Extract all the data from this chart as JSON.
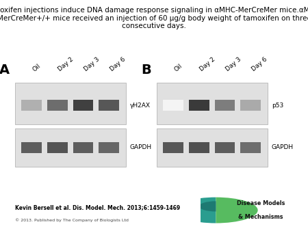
{
  "title": "Tamoxifen injections induce DNA damage response signaling in αMHC-MerCreMer mice.αMHC-\nMerCreMer+/+ mice received an injection of 60 μg/g body weight of tamoxifen on three\nconsecutive days.",
  "title_fontsize": 7.5,
  "panel_A_label": "A",
  "panel_B_label": "B",
  "lane_labels": [
    "Oil",
    "Day 2",
    "Day 3",
    "Day 6"
  ],
  "panel_A_bands": {
    "yH2AX": {
      "intensities": [
        0.35,
        0.65,
        0.85,
        0.75
      ],
      "label": "γH2AX"
    },
    "GAPDH_A": {
      "intensities": [
        0.72,
        0.76,
        0.72,
        0.68
      ],
      "label": "GAPDH"
    }
  },
  "panel_B_bands": {
    "p53": {
      "intensities": [
        0.05,
        0.88,
        0.58,
        0.38
      ],
      "label": "p53"
    },
    "GAPDH_B": {
      "intensities": [
        0.75,
        0.78,
        0.72,
        0.65
      ],
      "label": "GAPDH"
    }
  },
  "citation": "Kevin Bersell et al. Dis. Model. Mech. 2013;6:1459-1469",
  "copyright": "© 2013. Published by The Company of Biologists Ltd",
  "background_color": "#ffffff"
}
